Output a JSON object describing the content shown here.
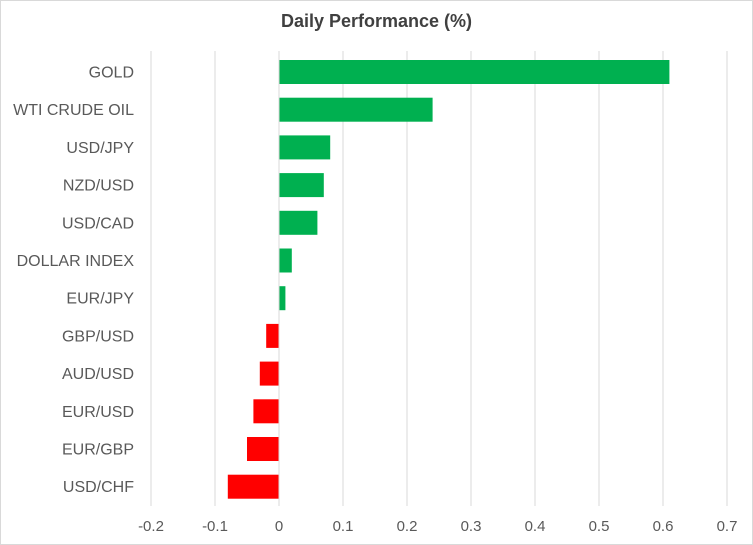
{
  "chart_data": {
    "type": "bar",
    "orientation": "horizontal",
    "title": "Daily Performance  (%)",
    "xlabel": "",
    "ylabel": "",
    "categories": [
      "GOLD",
      "WTI CRUDE OIL",
      "USD/JPY",
      "NZD/USD",
      "USD/CAD",
      "DOLLAR INDEX",
      "EUR/JPY",
      "GBP/USD",
      "AUD/USD",
      "EUR/USD",
      "EUR/GBP",
      "USD/CHF"
    ],
    "values": [
      0.61,
      0.24,
      0.08,
      0.07,
      0.06,
      0.02,
      0.01,
      -0.02,
      -0.03,
      -0.04,
      -0.05,
      -0.08
    ],
    "xlim": [
      -0.2,
      0.7
    ],
    "x_ticks": [
      "-0.2",
      "-0.1",
      "0",
      "0.1",
      "0.2",
      "0.3",
      "0.4",
      "0.5",
      "0.6",
      "0.7"
    ],
    "grid": true,
    "legend": "none",
    "colors": {
      "positive": "#00b050",
      "negative": "#ff0000",
      "grid": "#d9d9d9",
      "text": "#595959",
      "title": "#404040"
    }
  }
}
